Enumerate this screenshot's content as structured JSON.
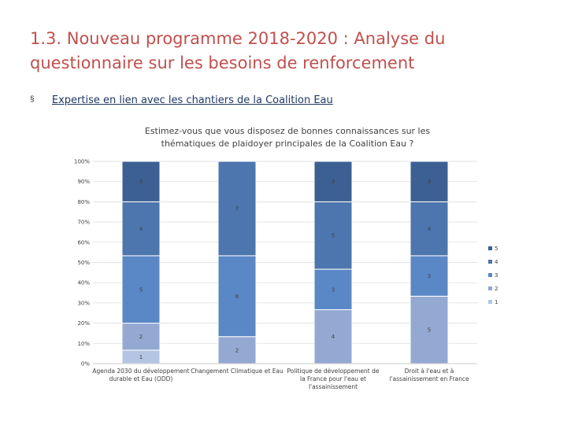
{
  "slide": {
    "title": "1.3. Nouveau programme 2018-2020 : Analyse du questionnaire sur les besoins de renforcement",
    "bullet_marker": "§",
    "bullet_text": "Expertise en lien avec les chantiers de la Coalition Eau"
  },
  "colors": {
    "title": "#c0504d",
    "s1": "#b4c5e4",
    "s2": "#94a9d2",
    "s3": "#5a88c6",
    "s4": "#4d76ae",
    "s5": "#3d6094"
  },
  "chart_data": {
    "type": "stacked-bar-100",
    "title_lines": [
      "Estimez-vous que vous disposez de bonnes connaissances sur les",
      "thématiques de plaidoyer principales de la Coalition Eau ?"
    ],
    "categories": [
      [
        "Agenda 2030 du développement",
        "durable et Eau (ODD)"
      ],
      [
        "Changement Climatique et Eau"
      ],
      [
        "Politique de développement de",
        "la France pour l'eau et",
        "l'assainissement"
      ],
      [
        "Droit à l'eau et à",
        "l'assainissement en France"
      ]
    ],
    "series": [
      {
        "name": "1",
        "values": [
          1,
          0,
          0,
          0
        ]
      },
      {
        "name": "2",
        "values": [
          2,
          2,
          4,
          5
        ]
      },
      {
        "name": "3",
        "values": [
          5,
          6,
          3,
          3
        ]
      },
      {
        "name": "4",
        "values": [
          4,
          7,
          5,
          4
        ]
      },
      {
        "name": "5",
        "values": [
          3,
          0,
          3,
          3
        ]
      }
    ],
    "yticks": [
      "0%",
      "10%",
      "20%",
      "30%",
      "40%",
      "50%",
      "60%",
      "70%",
      "80%",
      "90%",
      "100%"
    ],
    "legend": [
      "5",
      "4",
      "3",
      "2",
      "1"
    ],
    "legend_position": "right"
  }
}
